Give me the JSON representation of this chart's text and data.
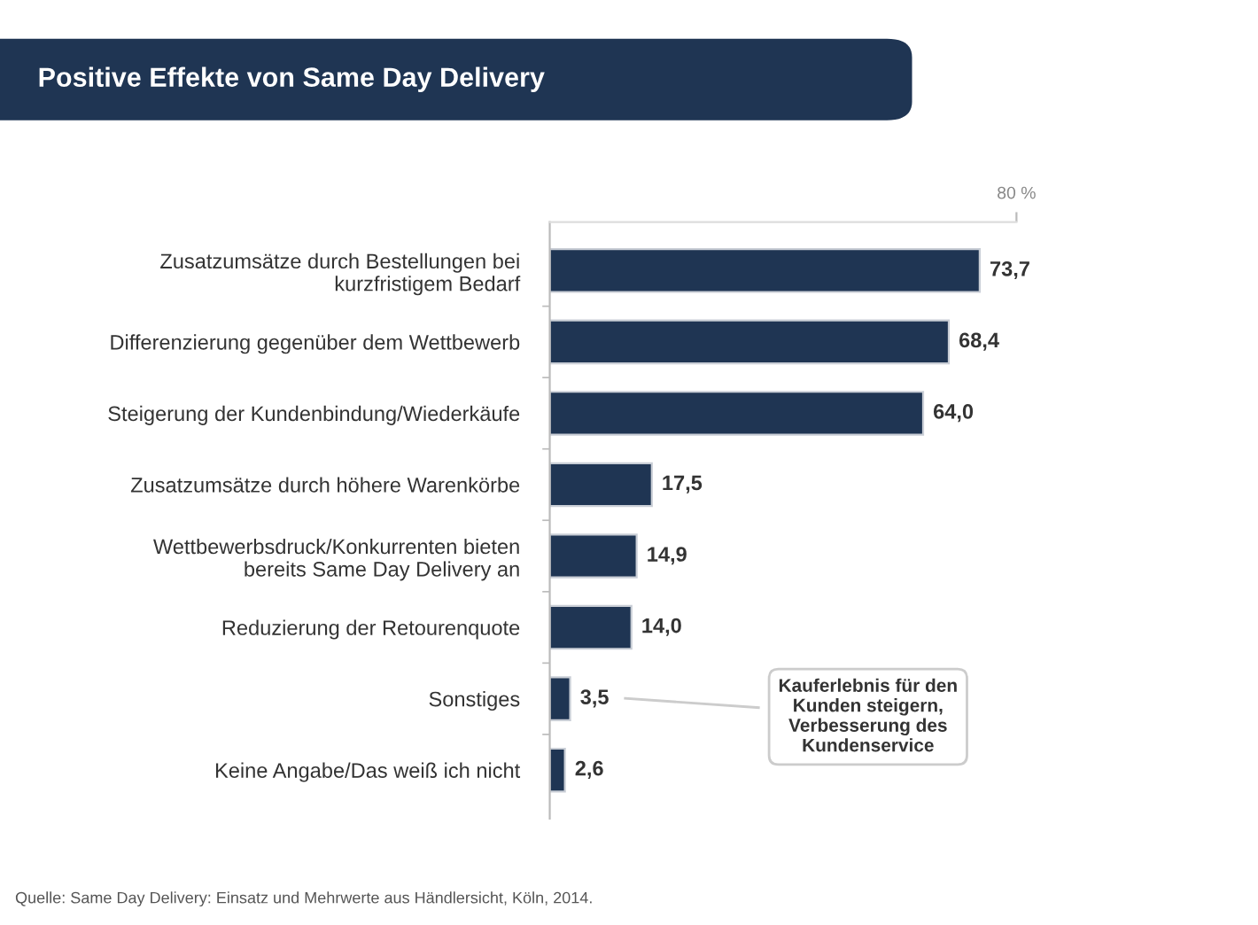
{
  "chart_data": {
    "type": "bar",
    "orientation": "horizontal",
    "title": "Positive Effekte von Same Day Delivery",
    "categories": [
      "Zusatzumsätze durch Bestellungen bei\nkurzfristigem Bedarf",
      "Differenzierung gegenüber dem Wettbewerb",
      "Steigerung der Kundenbindung/Wiederkäufe",
      "Zusatzumsätze durch höhere Warenkörbe",
      "Wettbewerbsdruck/Konkurrenten bieten\nbereits Same Day Delivery an",
      "Reduzierung der Retourenquote",
      "Sonstiges",
      "Keine Angabe/Das weiß ich nicht"
    ],
    "values": [
      73.7,
      68.4,
      64.0,
      17.5,
      14.9,
      14.0,
      3.5,
      2.6
    ],
    "value_labels": [
      "73,7",
      "68,4",
      "64,0",
      "17,5",
      "14,9",
      "14,0",
      "3,5",
      "2,6"
    ],
    "color": "#1f3553",
    "xlim": [
      0,
      80
    ],
    "xticks": [
      {
        "value": 80,
        "label": "80 %"
      }
    ],
    "grid": false,
    "legend": false,
    "annotations": [
      "Kauferlebnis für den\nKunden steigern,\nVerbesserung des\nKundenservice",
      "Quelle: Same Day Delivery: Einsatz und Mehrwerte aus Händlersicht, Köln, 2014."
    ]
  }
}
